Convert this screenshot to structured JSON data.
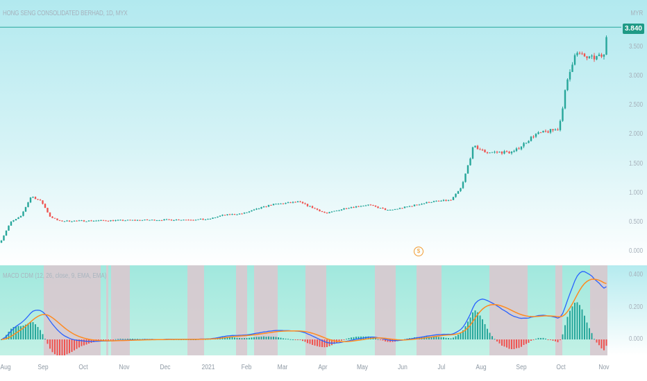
{
  "header": {
    "title": "HONG SENG CONSOLIDATED BERHAD, 1D, MYX",
    "currency": "MYR"
  },
  "price_axis": {
    "current_price": "3.840",
    "ticks": [
      "3.500",
      "3.000",
      "2.500",
      "2.000",
      "1.500",
      "1.000",
      "0.500",
      "0.000"
    ]
  },
  "indicator": {
    "title": "MACD CDM (12, 26, close, 9, EMA, EMA)",
    "ticks": [
      "0.400",
      "0.200",
      "0.000"
    ]
  },
  "dividend_marker": "$",
  "time_axis": [
    "Aug",
    "Sep",
    "Oct",
    "Nov",
    "Dec",
    "2021",
    "Feb",
    "Mar",
    "Apr",
    "May",
    "Jun",
    "Jul",
    "Aug",
    "Sep",
    "Oct",
    "Nov"
  ],
  "colors": {
    "up": "#26a69a",
    "down": "#ef5350",
    "macd": "#2962ff",
    "signal": "#ff8a1f",
    "bull_bg": "#8fe6cf",
    "bear_bg": "#d9c9cf"
  },
  "chart_data": {
    "type": "candlestick",
    "price_path": [
      [
        0,
        0.15
      ],
      [
        15,
        0.5
      ],
      [
        30,
        0.6
      ],
      [
        45,
        0.95
      ],
      [
        60,
        0.85
      ],
      [
        72,
        0.6
      ],
      [
        85,
        0.52
      ],
      [
        300,
        0.55
      ],
      [
        320,
        0.62
      ],
      [
        350,
        0.65
      ],
      [
        390,
        0.8
      ],
      [
        430,
        0.85
      ],
      [
        470,
        0.65
      ],
      [
        500,
        0.75
      ],
      [
        530,
        0.8
      ],
      [
        560,
        0.7
      ],
      [
        620,
        0.85
      ],
      [
        650,
        0.88
      ],
      [
        665,
        1.1
      ],
      [
        682,
        1.8
      ],
      [
        700,
        1.7
      ],
      [
        740,
        1.7
      ],
      [
        770,
        2.0
      ],
      [
        805,
        2.1
      ],
      [
        815,
        2.8
      ],
      [
        828,
        3.4
      ],
      [
        850,
        3.3
      ],
      [
        870,
        3.35
      ],
      [
        875,
        3.84
      ]
    ],
    "ylim": [
      0,
      4
    ],
    "macd_ylim": [
      -0.15,
      0.45
    ]
  }
}
